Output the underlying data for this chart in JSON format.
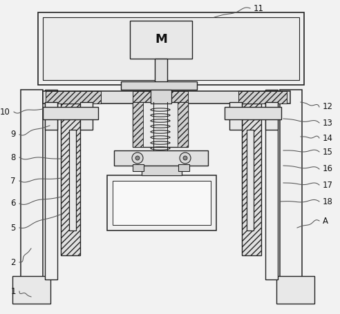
{
  "bg_color": "#f2f2f2",
  "line_color": "#222222",
  "fig_w": 4.92,
  "fig_h": 4.55,
  "dpi": 100
}
